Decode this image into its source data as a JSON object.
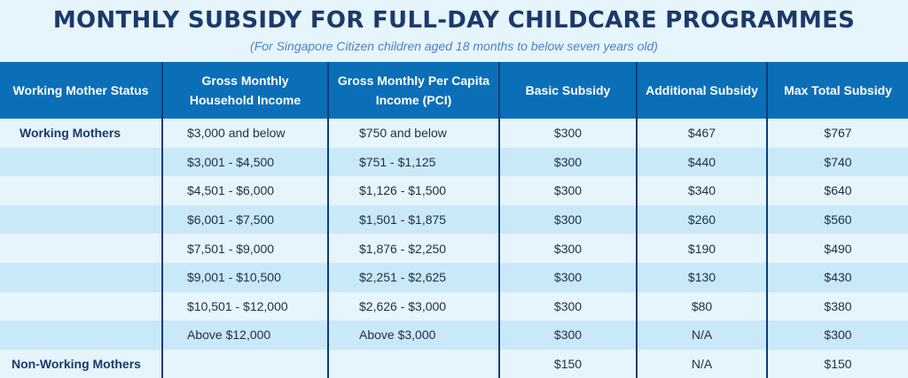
{
  "title": "MONTHLY SUBSIDY FOR FULL-DAY CHILDCARE PROGRAMMES",
  "subtitle": "(For Singapore Citizen children aged 18 months to below seven years old)",
  "table": {
    "headers": [
      "Working Mother Status",
      "Gross Monthly Household Income",
      "Gross Monthly Per Capita Income (PCI)",
      "Basic Subsidy",
      "Additional Subsidy",
      "Max Total Subsidy"
    ],
    "rows": [
      [
        "Working Mothers",
        "$3,000 and below",
        "$750 and below",
        "$300",
        "$467",
        "$767"
      ],
      [
        "",
        "$3,001 - $4,500",
        "$751 - $1,125",
        "$300",
        "$440",
        "$740"
      ],
      [
        "",
        "$4,501 - $6,000",
        "$1,126 - $1,500",
        "$300",
        "$340",
        "$640"
      ],
      [
        "",
        "$6,001 - $7,500",
        "$1,501 - $1,875",
        "$300",
        "$260",
        "$560"
      ],
      [
        "",
        "$7,501 - $9,000",
        "$1,876 - $2,250",
        "$300",
        "$190",
        "$490"
      ],
      [
        "",
        "$9,001 - $10,500",
        "$2,251 - $2,625",
        "$300",
        "$130",
        "$430"
      ],
      [
        "",
        "$10,501 - $12,000",
        "$2,626 - $3,000",
        "$300",
        "$80",
        "$380"
      ],
      [
        "",
        "Above $12,000",
        "Above $3,000",
        "$300",
        "N/A",
        "$300"
      ],
      [
        "Non-Working Mothers",
        "",
        "",
        "$150",
        "N/A",
        "$150"
      ]
    ]
  },
  "colors": {
    "title": "#1a3a6b",
    "subtitle": "#4a82c4",
    "header_bg": "#0b6fb8",
    "row_light": "#e6f4fb",
    "row_dark": "#c9e9f8",
    "divider": "#0a3d7a"
  }
}
